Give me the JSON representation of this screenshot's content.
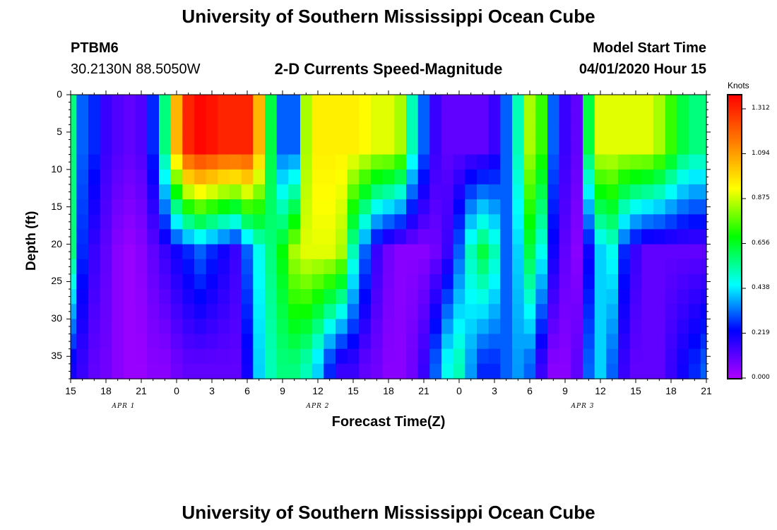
{
  "header": {
    "title": "University of Southern Mississippi Ocean Cube",
    "station": "PTBM6",
    "coords": "30.2130N 88.5050W",
    "subtitle": "2-D Currents Speed-Magnitude",
    "model_start_label": "Model Start Time",
    "model_start_value": "04/01/2020 Hour 15",
    "footer_title": "University of Southern Mississippi Ocean Cube"
  },
  "chart_data": {
    "type": "heatmap",
    "title": "2-D Currents Speed-Magnitude",
    "xlabel": "Forecast Time(Z)",
    "ylabel": "Depth (ft)",
    "x_tick_labels": [
      "15",
      "18",
      "21",
      "0",
      "3",
      "6",
      "9",
      "12",
      "15",
      "18",
      "21",
      "0",
      "3",
      "6",
      "9",
      "12",
      "15",
      "18",
      "21"
    ],
    "x_hours_from_start": [
      0,
      3,
      6,
      9,
      12,
      15,
      18,
      21,
      24,
      27,
      30,
      33,
      36,
      39,
      42,
      45,
      48,
      51,
      54
    ],
    "date_labels": [
      {
        "text": "APR 1",
        "hour": 4.5
      },
      {
        "text": "APR 2",
        "hour": 21
      },
      {
        "text": "APR 3",
        "hour": 43.5
      }
    ],
    "y_ticks": [
      0,
      5,
      10,
      15,
      20,
      25,
      30,
      35
    ],
    "ylim": [
      38,
      0
    ],
    "xlim": [
      0,
      54
    ],
    "colorbar": {
      "label": "Knots",
      "ticks": [
        "1.312",
        "1.094",
        "0.875",
        "0.656",
        "0.438",
        "0.219",
        "0.000"
      ],
      "range": [
        0.0,
        1.312
      ],
      "colors": [
        "#b000ff",
        "#0000ff",
        "#00ffff",
        "#00ff00",
        "#ffff00",
        "#ff8000",
        "#ff0000"
      ]
    },
    "grid_hours": [
      0,
      1,
      2,
      3,
      4,
      5,
      6,
      7,
      8,
      9,
      10,
      11,
      12,
      13,
      14,
      15,
      16,
      17,
      18,
      19,
      20,
      21,
      22,
      23,
      24,
      25,
      26,
      27,
      28,
      29,
      30,
      31,
      32,
      33,
      34,
      35,
      36,
      37,
      38,
      39,
      40,
      41,
      42,
      43,
      44,
      45,
      46,
      47,
      48,
      49,
      50,
      51,
      52,
      53,
      54
    ],
    "grid_depths": [
      0,
      2,
      4,
      6,
      8,
      10,
      12,
      14,
      16,
      18,
      20,
      22,
      24,
      26,
      28,
      30,
      32,
      34,
      36,
      38
    ],
    "approx_speed_knots": {
      "surface_0_to_8ft": [
        0.55,
        0.3,
        0.25,
        0.15,
        0.12,
        0.1,
        0.12,
        0.25,
        0.55,
        1.0,
        1.25,
        1.3,
        1.28,
        1.25,
        1.25,
        1.25,
        1.0,
        0.6,
        0.3,
        0.3,
        0.8,
        0.9,
        0.9,
        0.9,
        0.9,
        0.88,
        0.85,
        0.85,
        0.8,
        0.5,
        0.3,
        0.15,
        0.1,
        0.1,
        0.1,
        0.1,
        0.15,
        0.3,
        0.5,
        0.8,
        0.7,
        0.3,
        0.15,
        0.1,
        0.6,
        0.85,
        0.85,
        0.85,
        0.85,
        0.85,
        0.8,
        0.7,
        0.6,
        0.55,
        0.55
      ],
      "mid_20ft": [
        0.55,
        0.25,
        0.15,
        0.1,
        0.05,
        0.03,
        0.05,
        0.1,
        0.15,
        0.2,
        0.25,
        0.3,
        0.25,
        0.2,
        0.15,
        0.3,
        0.45,
        0.55,
        0.65,
        0.8,
        0.85,
        0.85,
        0.85,
        0.8,
        0.5,
        0.3,
        0.15,
        0.08,
        0.05,
        0.05,
        0.05,
        0.08,
        0.15,
        0.3,
        0.5,
        0.6,
        0.5,
        0.3,
        0.4,
        0.6,
        0.45,
        0.2,
        0.1,
        0.05,
        0.2,
        0.4,
        0.45,
        0.25,
        0.15,
        0.1,
        0.1,
        0.1,
        0.1,
        0.1,
        0.1
      ],
      "bottom_35ft": [
        0.2,
        0.15,
        0.1,
        0.08,
        0.05,
        0.03,
        0.03,
        0.05,
        0.05,
        0.08,
        0.1,
        0.1,
        0.1,
        0.1,
        0.1,
        0.2,
        0.4,
        0.5,
        0.55,
        0.55,
        0.5,
        0.4,
        0.25,
        0.15,
        0.15,
        0.1,
        0.08,
        0.05,
        0.05,
        0.08,
        0.15,
        0.3,
        0.45,
        0.5,
        0.35,
        0.25,
        0.25,
        0.3,
        0.35,
        0.3,
        0.15,
        0.05,
        0.05,
        0.1,
        0.3,
        0.4,
        0.3,
        0.15,
        0.1,
        0.1,
        0.1,
        0.15,
        0.2,
        0.25,
        0.3
      ]
    }
  }
}
